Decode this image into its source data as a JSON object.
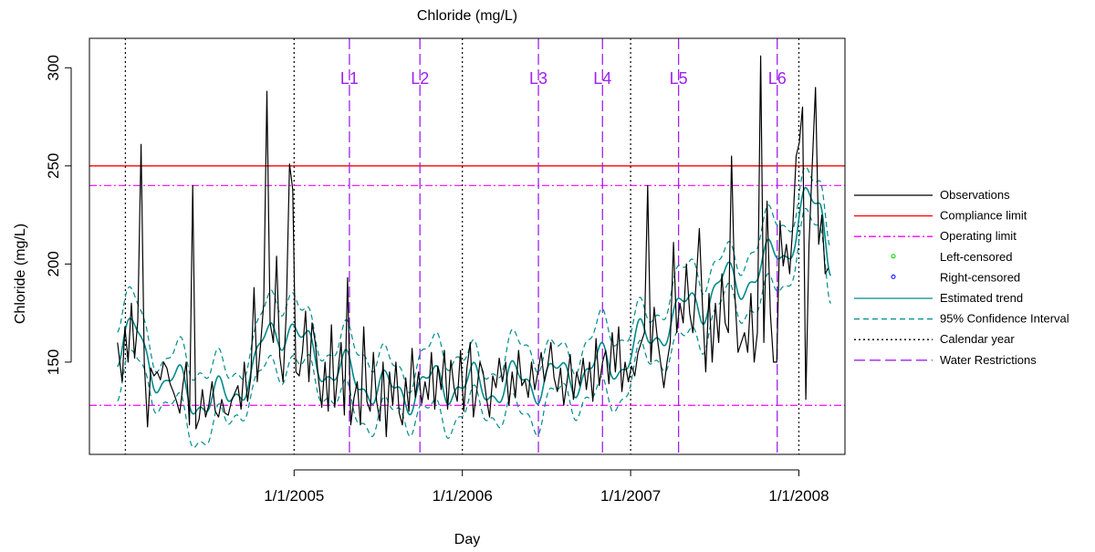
{
  "chart_data": {
    "type": "line",
    "title": "Chloride (mg/L)",
    "xlabel": "Day",
    "ylabel": "Chloride (mg/L)",
    "xlim": [
      "2003-10-15",
      "2008-04-10"
    ],
    "ylim": [
      103,
      315
    ],
    "y_ticks": [
      150,
      200,
      250,
      300
    ],
    "x_ticks": [
      {
        "date": "2005-01-01",
        "label": "1/1/2005"
      },
      {
        "date": "2006-01-01",
        "label": "1/1/2006"
      },
      {
        "date": "2007-01-01",
        "label": "1/1/2007"
      },
      {
        "date": "2008-01-01",
        "label": "1/1/2008"
      }
    ],
    "compliance_limit": 250,
    "operating_limits": [
      240,
      128
    ],
    "calendar_years": [
      "2004-01-01",
      "2005-01-01",
      "2006-01-01",
      "2007-01-01",
      "2008-01-01"
    ],
    "water_restrictions": [
      {
        "label": "L1",
        "date": "2005-05-01"
      },
      {
        "label": "L2",
        "date": "2005-10-01"
      },
      {
        "label": "L3",
        "date": "2006-06-15"
      },
      {
        "label": "L4",
        "date": "2006-11-01"
      },
      {
        "label": "L5",
        "date": "2007-04-15"
      },
      {
        "label": "L6",
        "date": "2007-11-15"
      }
    ],
    "observations": [
      [
        "2003-12-15",
        160
      ],
      [
        "2003-12-25",
        140
      ],
      [
        "2003-12-31",
        168
      ],
      [
        "2004-01-07",
        150
      ],
      [
        "2004-01-14",
        180
      ],
      [
        "2004-01-21",
        152
      ],
      [
        "2004-01-28",
        171
      ],
      [
        "2004-02-04",
        261
      ],
      [
        "2004-02-11",
        150
      ],
      [
        "2004-02-18",
        117
      ],
      [
        "2004-02-25",
        147
      ],
      [
        "2004-03-03",
        143
      ],
      [
        "2004-03-10",
        145
      ],
      [
        "2004-03-17",
        141
      ],
      [
        "2004-03-24",
        150
      ],
      [
        "2004-03-31",
        147
      ],
      [
        "2004-04-07",
        139
      ],
      [
        "2004-04-14",
        135
      ],
      [
        "2004-04-21",
        130
      ],
      [
        "2004-04-28",
        124
      ],
      [
        "2004-05-05",
        139
      ],
      [
        "2004-05-12",
        150
      ],
      [
        "2004-05-19",
        118
      ],
      [
        "2004-05-26",
        240
      ],
      [
        "2004-06-02",
        116
      ],
      [
        "2004-06-09",
        121
      ],
      [
        "2004-06-16",
        136
      ],
      [
        "2004-06-23",
        122
      ],
      [
        "2004-06-30",
        128
      ],
      [
        "2004-07-07",
        140
      ],
      [
        "2004-07-14",
        125
      ],
      [
        "2004-07-21",
        122
      ],
      [
        "2004-07-28",
        131
      ],
      [
        "2004-08-04",
        124
      ],
      [
        "2004-08-11",
        123
      ],
      [
        "2004-08-18",
        130
      ],
      [
        "2004-08-25",
        134
      ],
      [
        "2004-09-01",
        138
      ],
      [
        "2004-09-08",
        126
      ],
      [
        "2004-09-15",
        150
      ],
      [
        "2004-09-22",
        130
      ],
      [
        "2004-09-29",
        142
      ],
      [
        "2004-10-06",
        188
      ],
      [
        "2004-10-13",
        140
      ],
      [
        "2004-10-20",
        158
      ],
      [
        "2004-10-27",
        180
      ],
      [
        "2004-11-03",
        288
      ],
      [
        "2004-11-10",
        170
      ],
      [
        "2004-11-17",
        160
      ],
      [
        "2004-11-24",
        204
      ],
      [
        "2004-12-01",
        153
      ],
      [
        "2004-12-08",
        140
      ],
      [
        "2004-12-15",
        175
      ],
      [
        "2004-12-22",
        251
      ],
      [
        "2004-12-29",
        238
      ],
      [
        "2005-01-05",
        145
      ],
      [
        "2005-01-12",
        143
      ],
      [
        "2005-01-19",
        155
      ],
      [
        "2005-01-26",
        176
      ],
      [
        "2005-02-02",
        140
      ],
      [
        "2005-02-09",
        170
      ],
      [
        "2005-02-16",
        160
      ],
      [
        "2005-02-23",
        141
      ],
      [
        "2005-03-02",
        127
      ],
      [
        "2005-03-09",
        150
      ],
      [
        "2005-03-16",
        125
      ],
      [
        "2005-03-23",
        169
      ],
      [
        "2005-03-30",
        127
      ],
      [
        "2005-04-06",
        145
      ],
      [
        "2005-04-13",
        160
      ],
      [
        "2005-04-20",
        123
      ],
      [
        "2005-04-27",
        193
      ],
      [
        "2005-05-04",
        118
      ],
      [
        "2005-05-11",
        132
      ],
      [
        "2005-05-18",
        140
      ],
      [
        "2005-05-25",
        118
      ],
      [
        "2005-06-01",
        168
      ],
      [
        "2005-06-08",
        130
      ],
      [
        "2005-06-15",
        125
      ],
      [
        "2005-06-22",
        155
      ],
      [
        "2005-06-29",
        130
      ],
      [
        "2005-07-06",
        120
      ],
      [
        "2005-07-13",
        150
      ],
      [
        "2005-07-20",
        112
      ],
      [
        "2005-07-27",
        145
      ],
      [
        "2005-08-03",
        128
      ],
      [
        "2005-08-10",
        150
      ],
      [
        "2005-08-17",
        124
      ],
      [
        "2005-08-24",
        118
      ],
      [
        "2005-08-31",
        142
      ],
      [
        "2005-09-07",
        125
      ],
      [
        "2005-09-14",
        157
      ],
      [
        "2005-09-21",
        132
      ],
      [
        "2005-09-28",
        145
      ],
      [
        "2005-10-05",
        129
      ],
      [
        "2005-10-12",
        140
      ],
      [
        "2005-10-19",
        131
      ],
      [
        "2005-10-26",
        155
      ],
      [
        "2005-11-02",
        126
      ],
      [
        "2005-11-09",
        148
      ],
      [
        "2005-11-16",
        136
      ],
      [
        "2005-11-23",
        156
      ],
      [
        "2005-11-30",
        126
      ],
      [
        "2005-12-07",
        151
      ],
      [
        "2005-12-14",
        137
      ],
      [
        "2005-12-21",
        130
      ],
      [
        "2005-12-28",
        156
      ],
      [
        "2006-01-04",
        125
      ],
      [
        "2006-01-11",
        147
      ],
      [
        "2006-01-18",
        160
      ],
      [
        "2006-01-25",
        122
      ],
      [
        "2006-02-01",
        135
      ],
      [
        "2006-02-08",
        150
      ],
      [
        "2006-02-15",
        145
      ],
      [
        "2006-02-22",
        132
      ],
      [
        "2006-03-01",
        122
      ],
      [
        "2006-03-08",
        143
      ],
      [
        "2006-03-15",
        137
      ],
      [
        "2006-03-22",
        152
      ],
      [
        "2006-03-29",
        140
      ],
      [
        "2006-04-05",
        150
      ],
      [
        "2006-04-12",
        128
      ],
      [
        "2006-04-19",
        145
      ],
      [
        "2006-04-26",
        132
      ],
      [
        "2006-05-03",
        156
      ],
      [
        "2006-05-10",
        138
      ],
      [
        "2006-05-17",
        141
      ],
      [
        "2006-05-24",
        132
      ],
      [
        "2006-05-31",
        150
      ],
      [
        "2006-06-07",
        136
      ],
      [
        "2006-06-14",
        145
      ],
      [
        "2006-06-21",
        155
      ],
      [
        "2006-06-28",
        140
      ],
      [
        "2006-07-05",
        148
      ],
      [
        "2006-07-12",
        160
      ],
      [
        "2006-07-19",
        142
      ],
      [
        "2006-07-26",
        135
      ],
      [
        "2006-08-02",
        147
      ],
      [
        "2006-08-09",
        128
      ],
      [
        "2006-08-16",
        140
      ],
      [
        "2006-08-23",
        154
      ],
      [
        "2006-08-30",
        131
      ],
      [
        "2006-09-06",
        145
      ],
      [
        "2006-09-13",
        138
      ],
      [
        "2006-09-20",
        152
      ],
      [
        "2006-09-27",
        136
      ],
      [
        "2006-10-04",
        150
      ],
      [
        "2006-10-11",
        130
      ],
      [
        "2006-10-18",
        162
      ],
      [
        "2006-10-25",
        138
      ],
      [
        "2006-11-01",
        150
      ],
      [
        "2006-11-08",
        156
      ],
      [
        "2006-11-15",
        139
      ],
      [
        "2006-11-22",
        165
      ],
      [
        "2006-11-29",
        145
      ],
      [
        "2006-12-06",
        168
      ],
      [
        "2006-12-13",
        135
      ],
      [
        "2006-12-20",
        150
      ],
      [
        "2006-12-27",
        140
      ],
      [
        "2007-01-03",
        148
      ],
      [
        "2007-01-10",
        143
      ],
      [
        "2007-01-17",
        155
      ],
      [
        "2007-01-24",
        160
      ],
      [
        "2007-01-31",
        165
      ],
      [
        "2007-02-07",
        240
      ],
      [
        "2007-02-14",
        150
      ],
      [
        "2007-02-21",
        178
      ],
      [
        "2007-02-28",
        162
      ],
      [
        "2007-03-07",
        150
      ],
      [
        "2007-03-14",
        137
      ],
      [
        "2007-03-21",
        150
      ],
      [
        "2007-03-28",
        160
      ],
      [
        "2007-04-04",
        211
      ],
      [
        "2007-04-11",
        165
      ],
      [
        "2007-04-18",
        180
      ],
      [
        "2007-04-25",
        170
      ],
      [
        "2007-05-02",
        200
      ],
      [
        "2007-05-09",
        175
      ],
      [
        "2007-05-16",
        165
      ],
      [
        "2007-05-23",
        190
      ],
      [
        "2007-05-30",
        218
      ],
      [
        "2007-06-06",
        178
      ],
      [
        "2007-06-13",
        145
      ],
      [
        "2007-06-20",
        185
      ],
      [
        "2007-06-27",
        150
      ],
      [
        "2007-07-04",
        180
      ],
      [
        "2007-07-11",
        160
      ],
      [
        "2007-07-18",
        195
      ],
      [
        "2007-07-25",
        170
      ],
      [
        "2007-08-01",
        165
      ],
      [
        "2007-08-08",
        255
      ],
      [
        "2007-08-15",
        185
      ],
      [
        "2007-08-22",
        155
      ],
      [
        "2007-08-29",
        160
      ],
      [
        "2007-09-05",
        165
      ],
      [
        "2007-09-12",
        155
      ],
      [
        "2007-09-19",
        185
      ],
      [
        "2007-09-26",
        150
      ],
      [
        "2007-10-03",
        165
      ],
      [
        "2007-10-10",
        306
      ],
      [
        "2007-10-17",
        160
      ],
      [
        "2007-10-24",
        232
      ],
      [
        "2007-10-31",
        175
      ],
      [
        "2007-11-07",
        150
      ],
      [
        "2007-11-14",
        150
      ],
      [
        "2007-11-21",
        222
      ],
      [
        "2007-11-28",
        199
      ],
      [
        "2007-12-05",
        210
      ],
      [
        "2007-12-12",
        195
      ],
      [
        "2007-12-19",
        220
      ],
      [
        "2007-12-26",
        255
      ],
      [
        "2008-01-02",
        262
      ],
      [
        "2008-01-09",
        280
      ],
      [
        "2008-01-16",
        131
      ],
      [
        "2008-01-23",
        210
      ],
      [
        "2008-01-30",
        250
      ],
      [
        "2008-02-06",
        290
      ],
      [
        "2008-02-13",
        210
      ],
      [
        "2008-02-20",
        225
      ],
      [
        "2008-02-27",
        195
      ],
      [
        "2008-03-05",
        198
      ]
    ],
    "trend": {
      "knots": [
        [
          "2003-12-15",
          160
        ],
        [
          "2004-01-15",
          165
        ],
        [
          "2004-02-15",
          152
        ],
        [
          "2004-04-01",
          140
        ],
        [
          "2004-06-01",
          132
        ],
        [
          "2004-08-01",
          130
        ],
        [
          "2004-10-01",
          145
        ],
        [
          "2004-11-15",
          165
        ],
        [
          "2004-12-15",
          170
        ],
        [
          "2005-02-01",
          155
        ],
        [
          "2005-04-01",
          145
        ],
        [
          "2005-06-01",
          140
        ],
        [
          "2005-08-01",
          134
        ],
        [
          "2005-10-01",
          137
        ],
        [
          "2005-12-01",
          140
        ],
        [
          "2006-02-01",
          137
        ],
        [
          "2006-04-01",
          138
        ],
        [
          "2006-06-01",
          141
        ],
        [
          "2006-08-01",
          142
        ],
        [
          "2006-10-01",
          146
        ],
        [
          "2006-12-01",
          150
        ],
        [
          "2007-02-01",
          160
        ],
        [
          "2007-04-01",
          172
        ],
        [
          "2007-06-01",
          182
        ],
        [
          "2007-08-01",
          190
        ],
        [
          "2007-10-01",
          195
        ],
        [
          "2007-12-01",
          208
        ],
        [
          "2008-01-15",
          228
        ],
        [
          "2008-02-15",
          228
        ],
        [
          "2008-03-10",
          207
        ]
      ],
      "seasonal_amplitude": 9,
      "ci_halfwidth": 14
    },
    "legend": {
      "placement": "right",
      "entries": [
        {
          "label": "Observations",
          "color": "#000000",
          "style": "solid"
        },
        {
          "label": "Compliance limit",
          "color": "#ff0000",
          "style": "solid"
        },
        {
          "label": "Operating limit",
          "color": "#ff00ff",
          "style": "dashdot"
        },
        {
          "label": "Left-censored",
          "color": "#00cc00",
          "style": "point"
        },
        {
          "label": "Right-censored",
          "color": "#0000ff",
          "style": "point"
        },
        {
          "label": "Estimated trend",
          "color": "#008b8b",
          "style": "solid"
        },
        {
          "label": "95% Confidence Interval",
          "color": "#008b8b",
          "style": "dashed"
        },
        {
          "label": "Calendar year",
          "color": "#000000",
          "style": "dotted"
        },
        {
          "label": "Water Restrictions",
          "color": "#a020f0",
          "style": "longdash"
        }
      ]
    },
    "colors": {
      "observations": "#000000",
      "compliance": "#ff0000",
      "operating": "#ff00ff",
      "trend": "#008b8b",
      "restriction": "#a020f0",
      "calendar": "#000000"
    }
  }
}
